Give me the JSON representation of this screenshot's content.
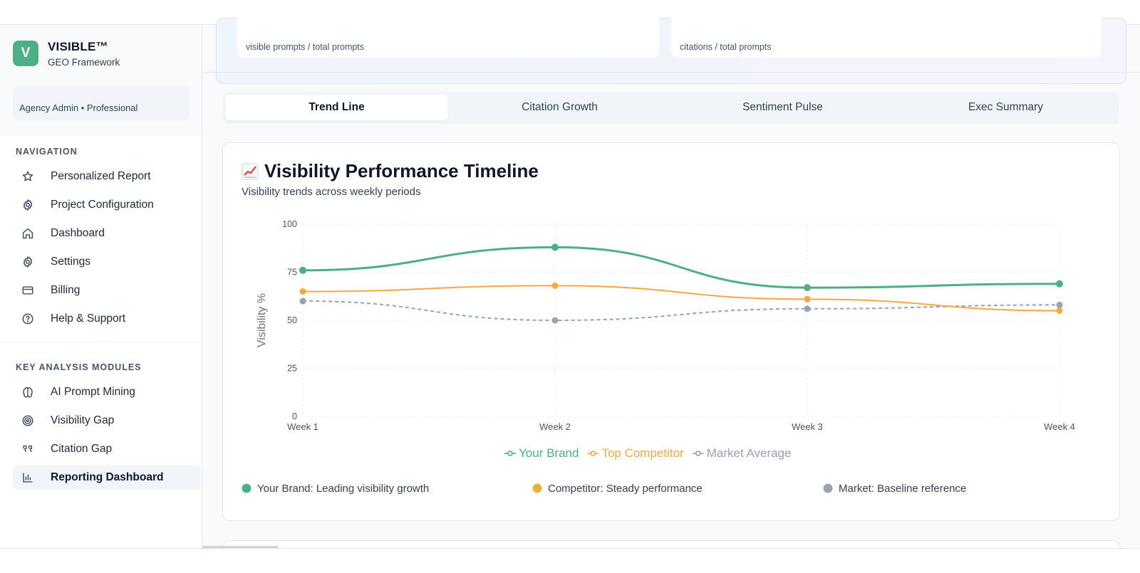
{
  "brand": {
    "logo_letter": "V",
    "name": "VISIBLE™",
    "subtitle": "GEO Framework"
  },
  "role": "Agency Admin • Professional",
  "sidebar": {
    "navigation_title": "NAVIGATION",
    "navigation": [
      {
        "label": "Personalized Report",
        "icon": "star-icon"
      },
      {
        "label": "Project Configuration",
        "icon": "gear-icon"
      },
      {
        "label": "Dashboard",
        "icon": "home-icon"
      },
      {
        "label": "Settings",
        "icon": "gear-icon"
      },
      {
        "label": "Billing",
        "icon": "credit-card-icon"
      },
      {
        "label": "Help & Support",
        "icon": "help-circle-icon"
      }
    ],
    "modules_title": "KEY ANALYSIS MODULES",
    "modules": [
      {
        "label": "AI Prompt Mining",
        "icon": "brain-icon"
      },
      {
        "label": "Visibility Gap",
        "icon": "target-icon"
      },
      {
        "label": "Citation Gap",
        "icon": "quote-icon"
      },
      {
        "label": "Reporting Dashboard",
        "icon": "bar-chart-icon",
        "active": true
      }
    ]
  },
  "stats": {
    "left_caption": "visible prompts / total prompts",
    "right_caption": "citations / total prompts"
  },
  "tabs": [
    {
      "label": "Trend Line",
      "active": true
    },
    {
      "label": "Citation Growth"
    },
    {
      "label": "Sentiment Pulse"
    },
    {
      "label": "Exec Summary"
    }
  ],
  "card": {
    "title": "Visibility Performance Timeline",
    "title_icon": "chart-increasing-icon",
    "subtitle": "Visibility trends across weekly periods"
  },
  "chart_data": {
    "type": "line",
    "categories": [
      "Week 1",
      "Week 2",
      "Week 3",
      "Week 4"
    ],
    "ylabel": "Visibility %",
    "ylim": [
      0,
      100
    ],
    "yticks": [
      0,
      25,
      50,
      75,
      100
    ],
    "grid": true,
    "legend": "bottom-center",
    "series": [
      {
        "name": "Your Brand",
        "values": [
          76,
          88,
          67,
          69
        ],
        "color": "#4caf86",
        "style": "solid"
      },
      {
        "name": "Top Competitor",
        "values": [
          65,
          68,
          61,
          55
        ],
        "color": "#f5a742",
        "style": "solid"
      },
      {
        "name": "Market Average",
        "values": [
          60,
          50,
          56,
          58
        ],
        "color": "#94a3b8",
        "style": "dashed"
      }
    ]
  },
  "notes": [
    {
      "text": "Your Brand: Leading visibility growth",
      "color": "#4caf86"
    },
    {
      "text": "Competitor: Steady performance",
      "color": "#e8b23a"
    },
    {
      "text": "Market: Baseline reference",
      "color": "#9ca3af"
    }
  ]
}
